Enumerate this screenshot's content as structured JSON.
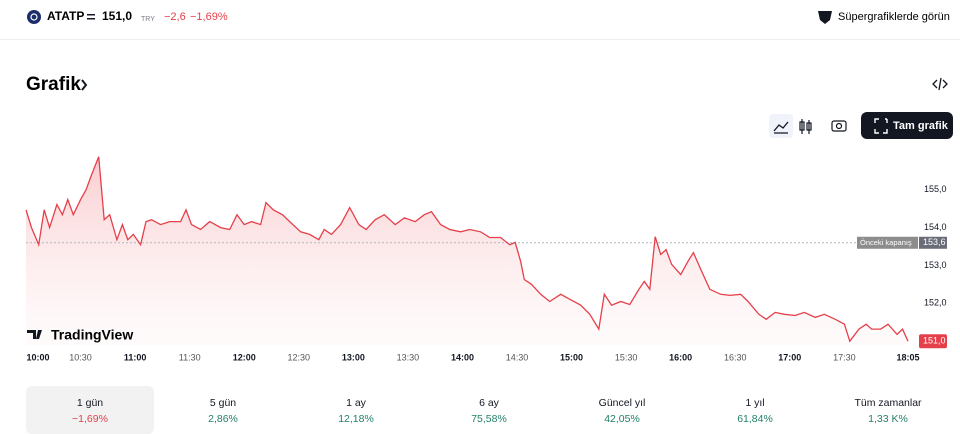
{
  "header": {
    "symbol": "ATATP",
    "price": "151,0",
    "currency": "TRY",
    "change": "−2,6",
    "change_pct": "−1,69%",
    "link": "Süpergrafiklerde görün"
  },
  "section_title": "Grafik",
  "toolbar": {
    "full_chart": "Tam grafik"
  },
  "brand": "TradingView",
  "chart_data": {
    "type": "line",
    "color": "#e5404a",
    "x": [
      600,
      603,
      607,
      610,
      613,
      617,
      620,
      623,
      626,
      630,
      633,
      636,
      640,
      643,
      646,
      650,
      653,
      656,
      659,
      663,
      666,
      669,
      674,
      679,
      685,
      688,
      691,
      696,
      701,
      707,
      712,
      716,
      720,
      724,
      729,
      732,
      736,
      741,
      745,
      751,
      756,
      761,
      764,
      768,
      773,
      778,
      783,
      787,
      792,
      797,
      803,
      808,
      814,
      819,
      823,
      828,
      833,
      839,
      844,
      850,
      855,
      861,
      866,
      869,
      872,
      874,
      878,
      883,
      888,
      894,
      899,
      905,
      910,
      915,
      918,
      922,
      927,
      932,
      937,
      940,
      943,
      946,
      949,
      952,
      955,
      960,
      964,
      967,
      971,
      976,
      982,
      987,
      993,
      997,
      1003,
      1007,
      1012,
      1017,
      1023,
      1028,
      1034,
      1039,
      1045,
      1050,
      1053,
      1058,
      1062,
      1065,
      1070,
      1074,
      1079,
      1082,
      1085
    ],
    "values": [
      154.47,
      154.0,
      153.55,
      154.47,
      154.0,
      154.61,
      154.34,
      154.74,
      154.34,
      154.74,
      155.0,
      155.39,
      155.87,
      154.21,
      154.34,
      153.68,
      154.08,
      153.68,
      153.82,
      153.55,
      154.16,
      154.21,
      154.08,
      154.16,
      154.16,
      154.47,
      154.08,
      153.95,
      154.16,
      154.0,
      153.95,
      154.34,
      154.08,
      154.16,
      154.08,
      154.66,
      154.47,
      154.34,
      154.16,
      153.89,
      153.82,
      153.68,
      153.95,
      153.82,
      154.08,
      154.53,
      154.08,
      153.95,
      154.21,
      154.34,
      154.08,
      154.26,
      154.16,
      154.34,
      154.42,
      154.08,
      153.95,
      153.89,
      153.95,
      153.89,
      153.74,
      153.74,
      153.55,
      153.61,
      153.11,
      152.63,
      152.5,
      152.24,
      152.05,
      152.24,
      152.11,
      151.95,
      151.71,
      151.32,
      152.24,
      151.95,
      152.05,
      151.97,
      152.37,
      152.58,
      152.37,
      153.76,
      153.29,
      153.42,
      153.03,
      152.76,
      153.11,
      153.34,
      152.9,
      152.37,
      152.24,
      152.21,
      152.24,
      152.05,
      151.71,
      151.58,
      151.76,
      151.71,
      151.68,
      151.76,
      151.63,
      151.71,
      151.58,
      151.45,
      151.0,
      151.32,
      151.45,
      151.32,
      151.32,
      151.45,
      151.18,
      151.32,
      151.0
    ],
    "xlim": [
      600,
      1085
    ],
    "xticks": [
      {
        "value": 600,
        "label": "10:00"
      },
      {
        "value": 630,
        "label": "10:30"
      },
      {
        "value": 660,
        "label": "11:00"
      },
      {
        "value": 690,
        "label": "11:30"
      },
      {
        "value": 720,
        "label": "12:00"
      },
      {
        "value": 750,
        "label": "12:30"
      },
      {
        "value": 780,
        "label": "13:00"
      },
      {
        "value": 810,
        "label": "13:30"
      },
      {
        "value": 840,
        "label": "14:00"
      },
      {
        "value": 870,
        "label": "14:30"
      },
      {
        "value": 900,
        "label": "15:00"
      },
      {
        "value": 930,
        "label": "15:30"
      },
      {
        "value": 960,
        "label": "16:00"
      },
      {
        "value": 990,
        "label": "16:30"
      },
      {
        "value": 1020,
        "label": "17:00"
      },
      {
        "value": 1050,
        "label": "17:30"
      },
      {
        "value": 1085,
        "label": "18:05"
      }
    ],
    "ylim": [
      150.9,
      156.05
    ],
    "yticks": [
      {
        "value": 155,
        "label": "155,0"
      },
      {
        "value": 154,
        "label": "154,0"
      },
      {
        "value": 153,
        "label": "153,0"
      },
      {
        "value": 152,
        "label": "152,0"
      }
    ],
    "previous_close": {
      "name": "Önceki kapanış",
      "value": 153.6,
      "label": "153,6"
    },
    "current_price": {
      "value": 151.0,
      "label": "151,0"
    }
  },
  "periods": [
    {
      "label": "1 gün",
      "change": "−1,69%"
    },
    {
      "label": "5 gün",
      "change": "2,86%"
    },
    {
      "label": "1 ay",
      "change": "12,18%"
    },
    {
      "label": "6 ay",
      "change": "75,58%"
    },
    {
      "label": "Güncel yıl",
      "change": "42,05%"
    },
    {
      "label": "1 yıl",
      "change": "61,84%"
    },
    {
      "label": "Tüm zamanlar",
      "change": "1,33 K%"
    }
  ]
}
